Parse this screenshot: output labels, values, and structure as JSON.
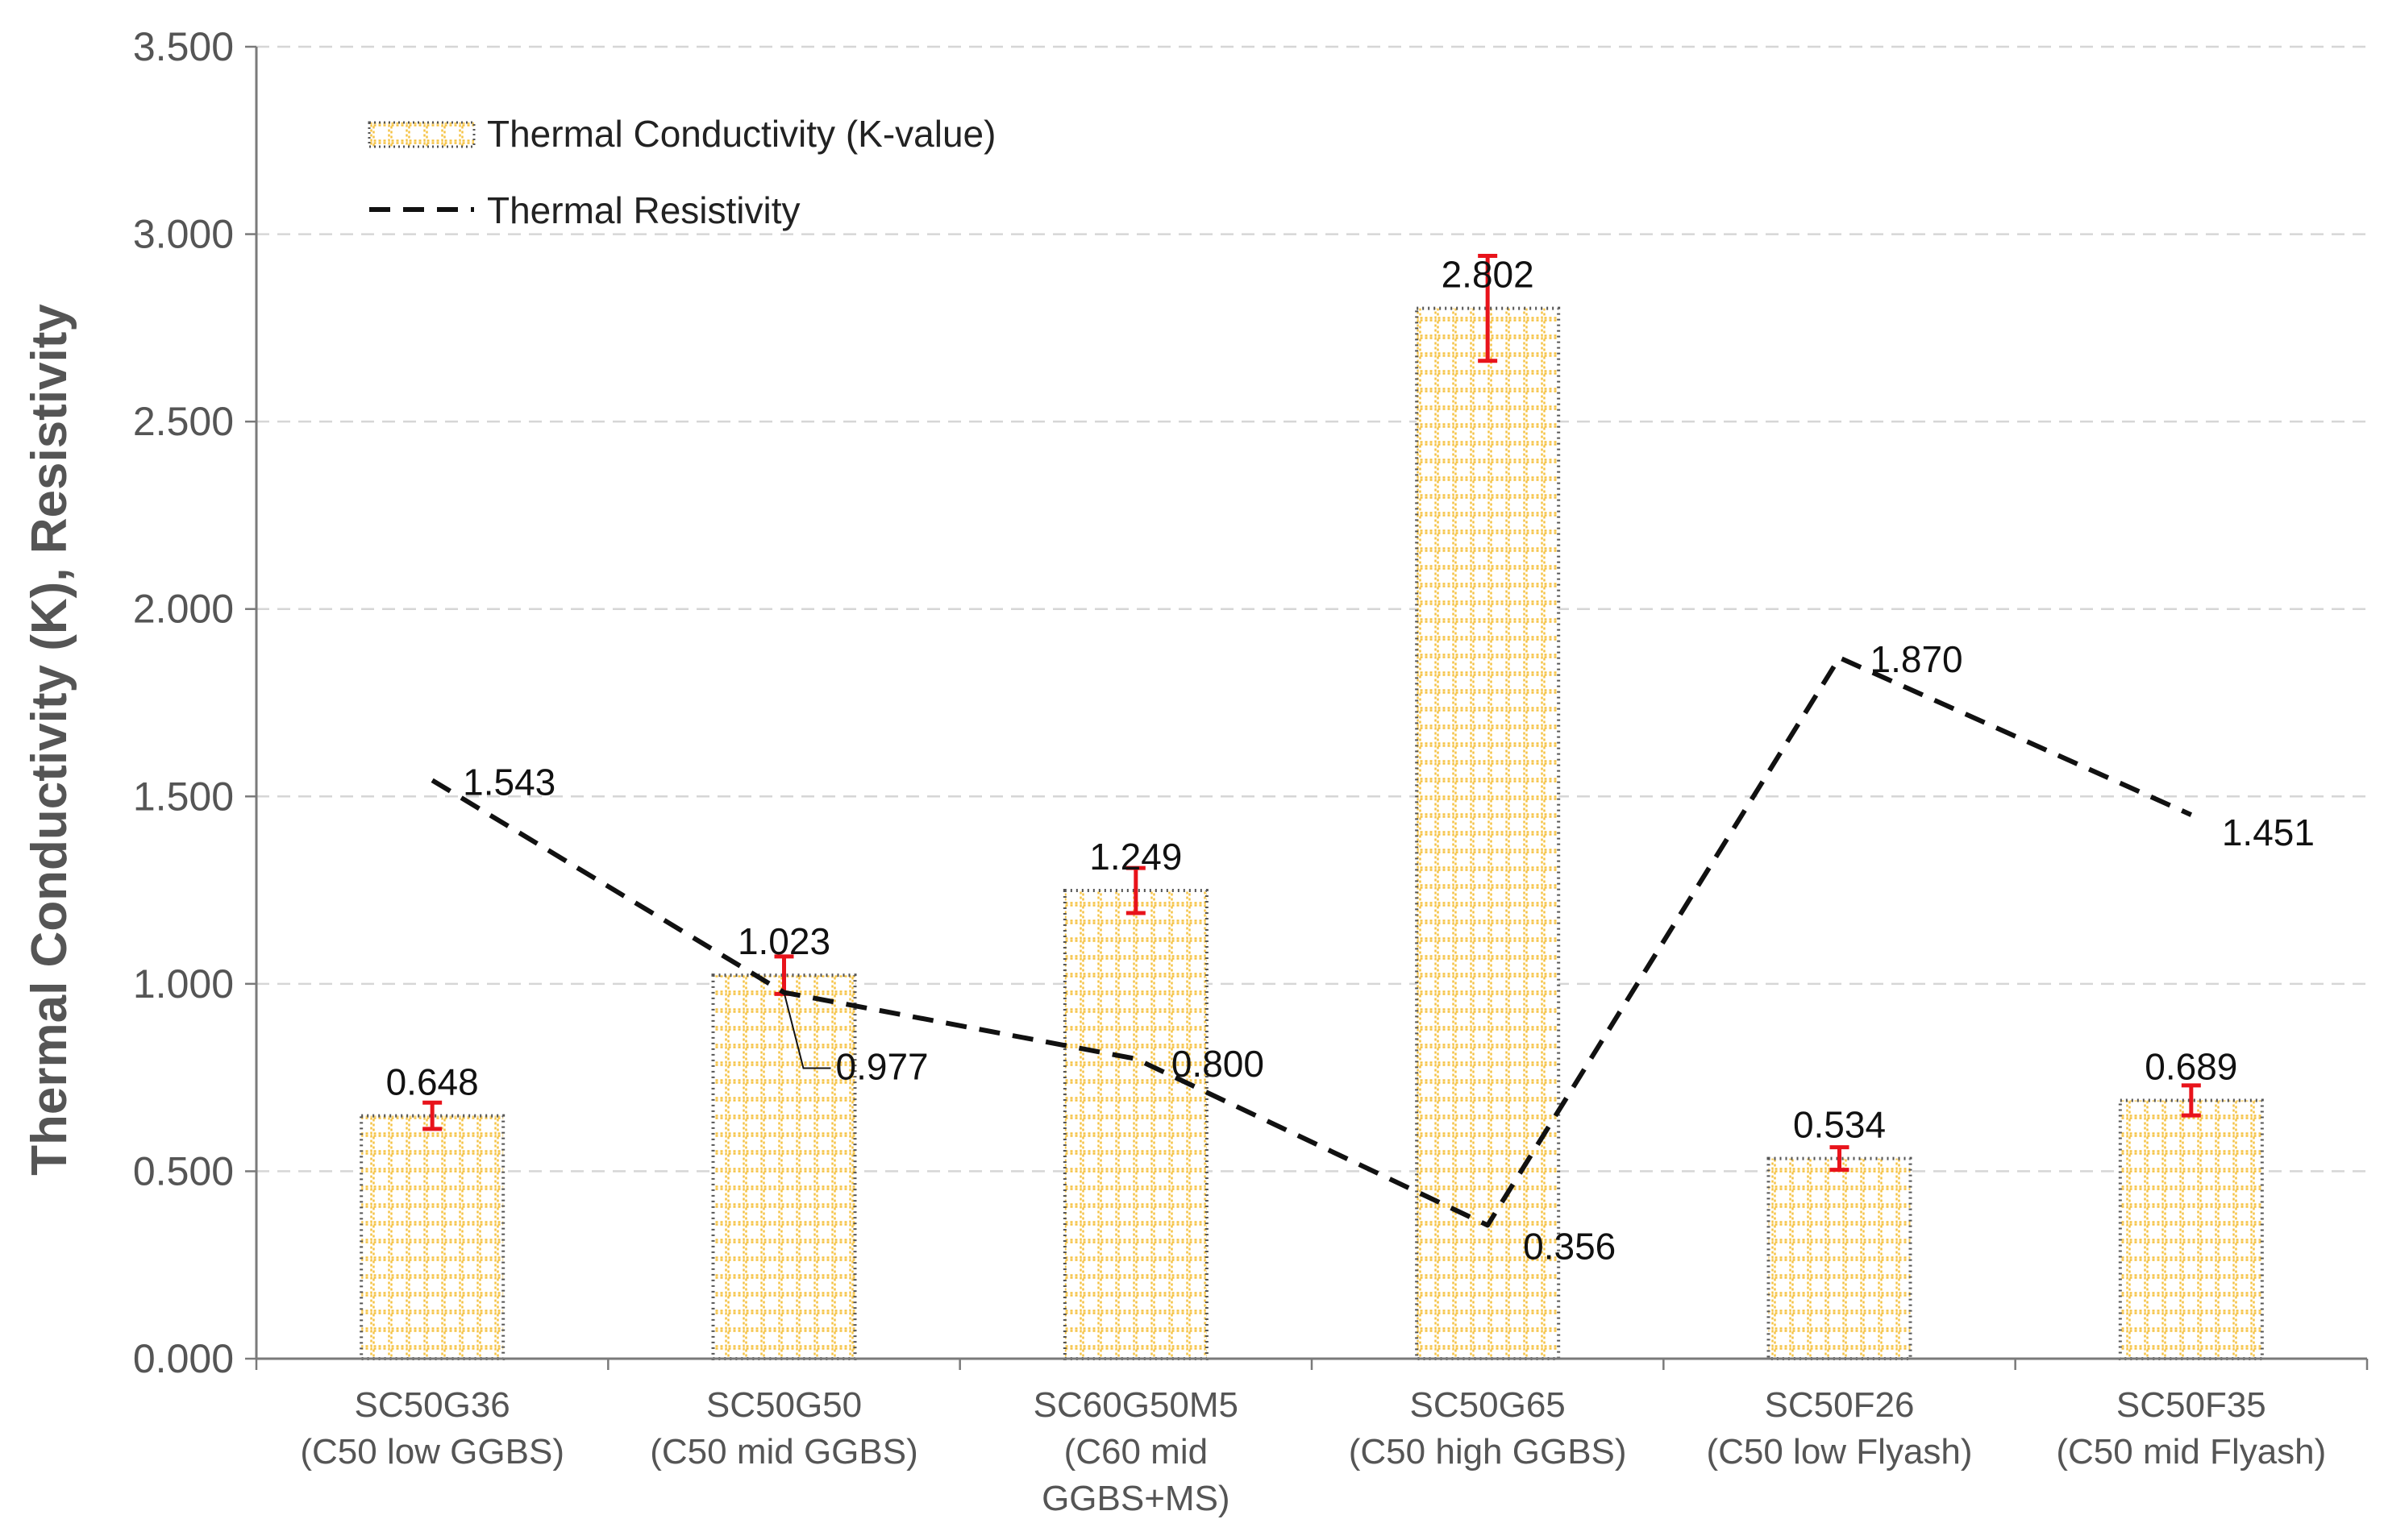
{
  "chart_data": {
    "type": "bar",
    "title": "",
    "xlabel": "",
    "ylabel": "Thermal Conductivity (K), Resistivity",
    "ylim": [
      0,
      3.5
    ],
    "ytick_step": 0.5,
    "ytick_labels": [
      "0.000",
      "0.500",
      "1.000",
      "1.500",
      "2.000",
      "2.500",
      "3.000",
      "3.500"
    ],
    "grid": true,
    "legend_position": "top-left",
    "categories": [
      [
        "SC50G36",
        "(C50 low GGBS)"
      ],
      [
        "SC50G50",
        "(C50 mid GGBS)"
      ],
      [
        "SC60G50M5",
        "(C60 mid",
        "GGBS+MS)"
      ],
      [
        "SC50G65",
        "(C50 high GGBS)"
      ],
      [
        "SC50F26",
        "(C50 low Flyash)"
      ],
      [
        "SC50F35",
        "(C50 mid Flyash)"
      ]
    ],
    "series": [
      {
        "name": "Thermal Conductivity (K-value)",
        "kind": "bar",
        "values": [
          0.648,
          1.023,
          1.249,
          2.802,
          0.534,
          0.689
        ],
        "labels": [
          "0.648",
          "1.023",
          "1.249",
          "2.802",
          "0.534",
          "0.689"
        ],
        "error": [
          0.035,
          0.05,
          0.06,
          0.14,
          0.03,
          0.04
        ],
        "fill_color": "#F5C242",
        "edge_color": "#555555",
        "error_color": "#E8131B"
      },
      {
        "name": "Thermal Resistivity",
        "kind": "line",
        "style": "dashed",
        "values": [
          1.543,
          0.977,
          0.8,
          0.356,
          1.87,
          1.451
        ],
        "labels": [
          "1.543",
          "0.977",
          "0.800",
          "0.356",
          "1.870",
          "1.451"
        ],
        "color": "#111111"
      }
    ]
  }
}
